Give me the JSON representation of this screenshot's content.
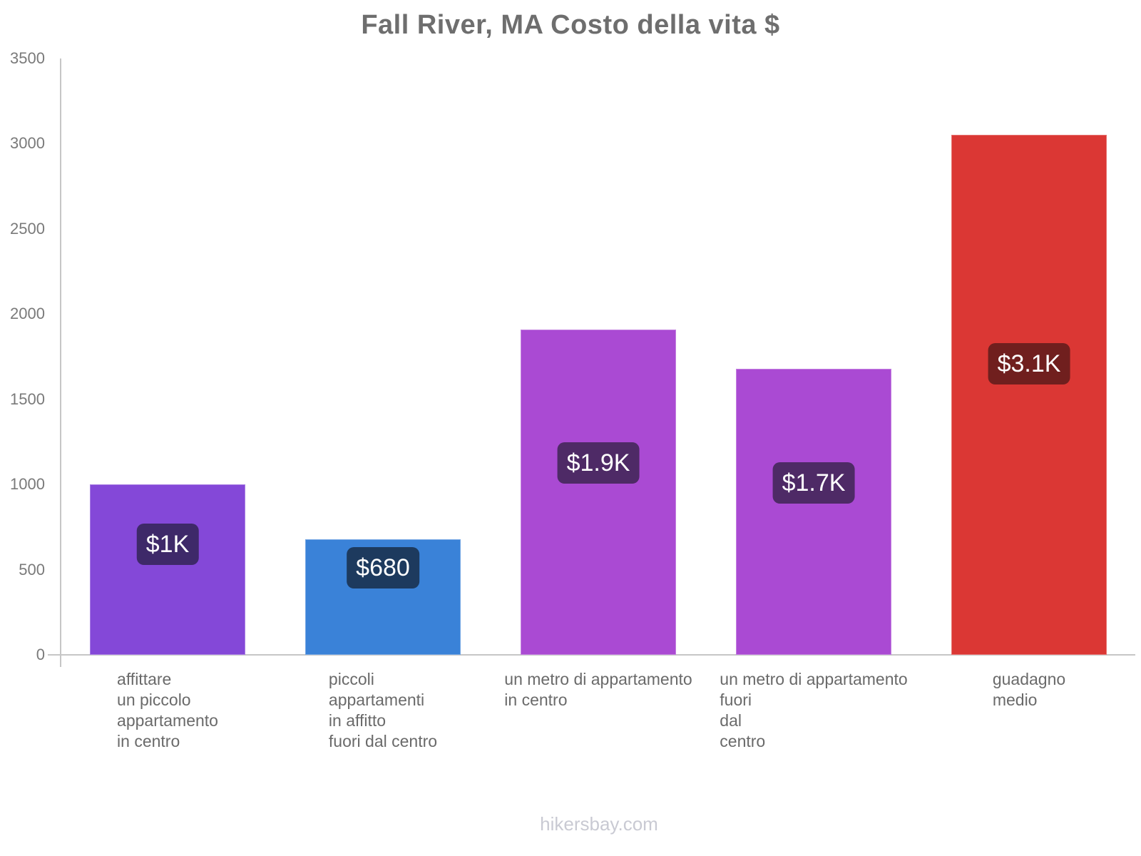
{
  "chart_data": {
    "type": "bar",
    "title": "Fall River, MA Costo della vita $",
    "categories": [
      [
        "affittare",
        "un piccolo",
        "appartamento",
        "in centro"
      ],
      [
        "piccoli",
        "appartamenti",
        "in affitto",
        "fuori dal centro"
      ],
      [
        "un metro di appartamento",
        "in centro"
      ],
      [
        "un metro di appartamento",
        "fuori",
        "dal",
        "centro"
      ],
      [
        "guadagno",
        "medio"
      ]
    ],
    "values": [
      1000,
      680,
      1910,
      1680,
      3050
    ],
    "value_labels": [
      "$1K",
      "$680",
      "$1.9K",
      "$1.7K",
      "$3.1K"
    ],
    "bar_colors": [
      "#8448d8",
      "#3a82d8",
      "#aa4ad3",
      "#aa4ad3",
      "#db3734"
    ],
    "badge_colors": [
      "#3e2969",
      "#1d3a5e",
      "#4e2a66",
      "#4e2a66",
      "#701f1e"
    ],
    "xlabel": "",
    "ylabel": "",
    "ylim": [
      0,
      3500
    ],
    "yticks": [
      0,
      500,
      1000,
      1500,
      2000,
      2500,
      3000,
      3500
    ],
    "grid": false,
    "legend": false,
    "colors": {
      "background": "#ffffff",
      "title": "#6e6e6e",
      "axis_line": "#c6c6c6",
      "tick_label": "#7a7a7a",
      "category_label": "#6a6a6a",
      "badge_text": "#ffffff",
      "footer": "#c9cad3"
    }
  },
  "footer": {
    "watermark": "hikersbay.com"
  }
}
